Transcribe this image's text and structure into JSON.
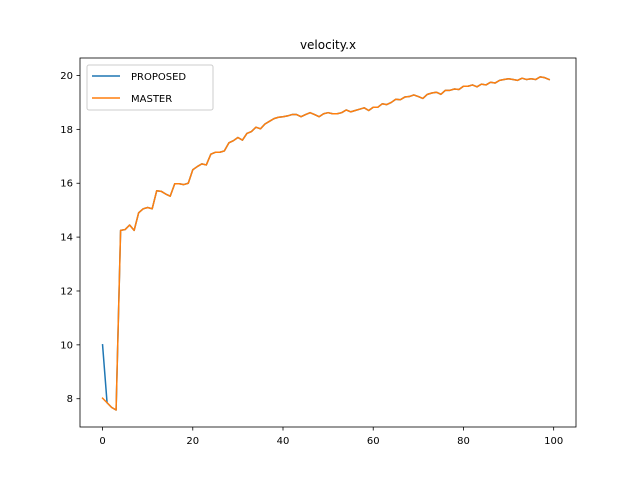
{
  "chart_data": {
    "type": "line",
    "title": "velocity.x",
    "xlabel": "",
    "ylabel": "",
    "xlim": [
      -5,
      104.95
    ],
    "ylim": [
      6.95,
      20.65
    ],
    "xticks": [
      0,
      20,
      40,
      60,
      80,
      100
    ],
    "yticks": [
      8,
      10,
      12,
      14,
      16,
      18,
      20
    ],
    "grid": false,
    "legend": "top-left",
    "x": [
      0,
      1,
      2,
      3,
      4,
      5,
      6,
      7,
      8,
      9,
      10,
      11,
      12,
      13,
      14,
      15,
      16,
      17,
      18,
      19,
      20,
      21,
      22,
      23,
      24,
      25,
      26,
      27,
      28,
      29,
      30,
      31,
      32,
      33,
      34,
      35,
      36,
      37,
      38,
      39,
      40,
      41,
      42,
      43,
      44,
      45,
      46,
      47,
      48,
      49,
      50,
      51,
      52,
      53,
      54,
      55,
      56,
      57,
      58,
      59,
      60,
      61,
      62,
      63,
      64,
      65,
      66,
      67,
      68,
      69,
      70,
      71,
      72,
      73,
      74,
      75,
      76,
      77,
      78,
      79,
      80,
      81,
      82,
      83,
      84,
      85,
      86,
      87,
      88,
      89,
      90,
      91,
      92,
      93,
      94,
      95,
      96,
      97,
      98,
      99
    ],
    "series": [
      {
        "name": "PROPOSED",
        "color": "#1f77b4",
        "values": [
          10.0,
          7.85,
          7.68,
          7.58,
          14.25,
          14.28,
          14.45,
          14.25,
          14.9,
          15.05,
          15.1,
          15.05,
          15.72,
          15.7,
          15.6,
          15.52,
          15.98,
          15.98,
          15.95,
          16.0,
          16.5,
          16.62,
          16.72,
          16.68,
          17.08,
          17.15,
          17.15,
          17.2,
          17.5,
          17.58,
          17.7,
          17.6,
          17.85,
          17.92,
          18.08,
          18.02,
          18.2,
          18.3,
          18.4,
          18.45,
          18.47,
          18.5,
          18.55,
          18.55,
          18.47,
          18.55,
          18.62,
          18.55,
          18.47,
          18.58,
          18.62,
          18.58,
          18.58,
          18.62,
          18.72,
          18.65,
          18.7,
          18.75,
          18.8,
          18.7,
          18.82,
          18.82,
          18.95,
          18.92,
          19.0,
          19.12,
          19.1,
          19.2,
          19.22,
          19.28,
          19.22,
          19.15,
          19.3,
          19.35,
          19.38,
          19.3,
          19.45,
          19.45,
          19.5,
          19.48,
          19.6,
          19.6,
          19.65,
          19.58,
          19.68,
          19.65,
          19.75,
          19.72,
          19.82,
          19.85,
          19.88,
          19.85,
          19.82,
          19.9,
          19.85,
          19.88,
          19.85,
          19.95,
          19.92,
          19.85
        ]
      },
      {
        "name": "MASTER",
        "color": "#ff7f0e",
        "values": [
          8.02,
          7.85,
          7.68,
          7.58,
          14.25,
          14.28,
          14.45,
          14.25,
          14.9,
          15.05,
          15.1,
          15.05,
          15.72,
          15.7,
          15.6,
          15.52,
          15.98,
          15.98,
          15.95,
          16.0,
          16.5,
          16.62,
          16.72,
          16.68,
          17.08,
          17.15,
          17.15,
          17.2,
          17.5,
          17.58,
          17.7,
          17.6,
          17.85,
          17.92,
          18.08,
          18.02,
          18.2,
          18.3,
          18.4,
          18.45,
          18.47,
          18.5,
          18.55,
          18.55,
          18.47,
          18.55,
          18.62,
          18.55,
          18.47,
          18.58,
          18.62,
          18.58,
          18.58,
          18.62,
          18.72,
          18.65,
          18.7,
          18.75,
          18.8,
          18.7,
          18.82,
          18.82,
          18.95,
          18.92,
          19.0,
          19.12,
          19.1,
          19.2,
          19.22,
          19.28,
          19.22,
          19.15,
          19.3,
          19.35,
          19.38,
          19.3,
          19.45,
          19.45,
          19.5,
          19.48,
          19.6,
          19.6,
          19.65,
          19.58,
          19.68,
          19.65,
          19.75,
          19.72,
          19.82,
          19.85,
          19.88,
          19.85,
          19.82,
          19.9,
          19.85,
          19.88,
          19.85,
          19.95,
          19.92,
          19.85
        ]
      }
    ]
  }
}
